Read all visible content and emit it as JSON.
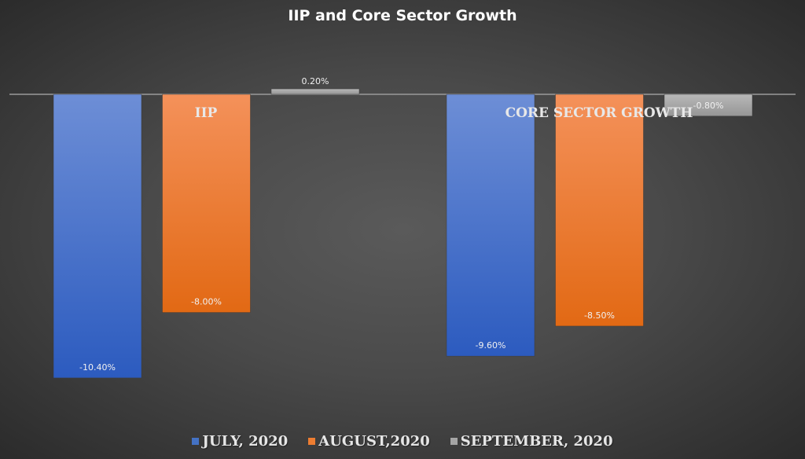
{
  "chart_data": {
    "type": "bar",
    "title": "IIP and Core Sector Growth",
    "categories": [
      "IIP",
      "CORE SECTOR GROWTH"
    ],
    "series": [
      {
        "name": "JULY, 2020",
        "values": [
          -10.4,
          -9.6
        ],
        "labels": [
          "-10.40%",
          "-9.60%"
        ],
        "color": "#4472c4"
      },
      {
        "name": "AUGUST,2020",
        "values": [
          -8.0,
          -8.5
        ],
        "labels": [
          "-8.00%",
          "-8.50%"
        ],
        "color": "#ed7d31"
      },
      {
        "name": "SEPTEMBER, 2020",
        "values": [
          0.2,
          -0.8
        ],
        "labels": [
          "0.20%",
          "-0.80%"
        ],
        "color": "#a5a5a5"
      }
    ],
    "xlabel": "",
    "ylabel": "",
    "ylim": [
      -11.5,
      0.5
    ],
    "grid": false,
    "legend": "bottom"
  }
}
